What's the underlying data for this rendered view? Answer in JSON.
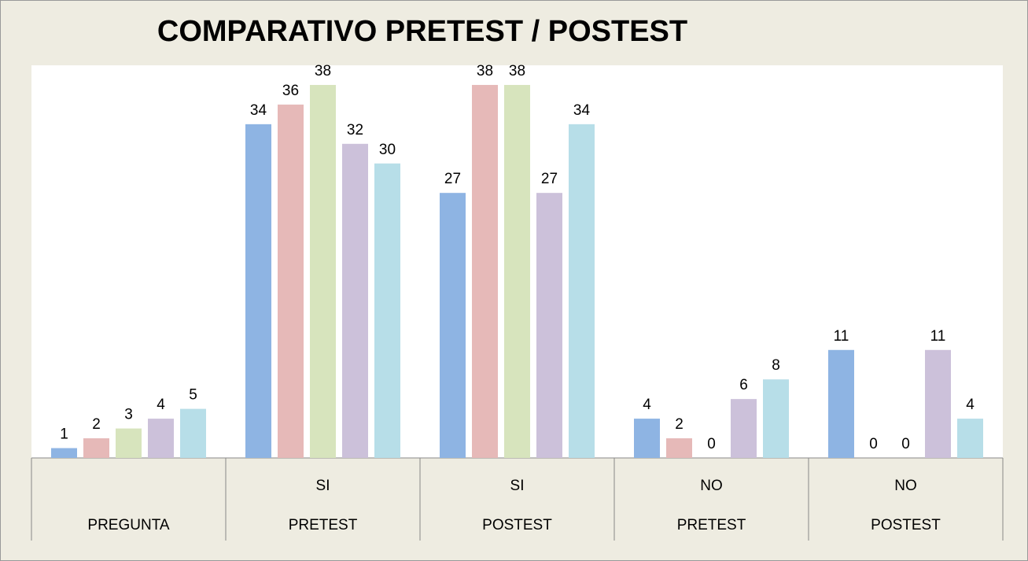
{
  "chart_data": {
    "type": "bar",
    "title": "COMPARATIVO PRETEST / POSTEST",
    "categories": [
      [
        null,
        "PREGUNTA"
      ],
      [
        "SI",
        "PRETEST"
      ],
      [
        "SI",
        "POSTEST"
      ],
      [
        "NO",
        "PRETEST"
      ],
      [
        "NO",
        "POSTEST"
      ]
    ],
    "series": [
      {
        "color": "#8eb4e3",
        "values": [
          1,
          34,
          27,
          4,
          11
        ]
      },
      {
        "color": "#e6b9b8",
        "values": [
          2,
          36,
          38,
          2,
          0
        ]
      },
      {
        "color": "#d7e4bd",
        "values": [
          3,
          38,
          38,
          0,
          0
        ]
      },
      {
        "color": "#ccc1da",
        "values": [
          4,
          32,
          27,
          6,
          11
        ]
      },
      {
        "color": "#b7dee8",
        "values": [
          5,
          30,
          34,
          8,
          4
        ]
      }
    ],
    "ylim": [
      0,
      40
    ],
    "grid": false
  }
}
